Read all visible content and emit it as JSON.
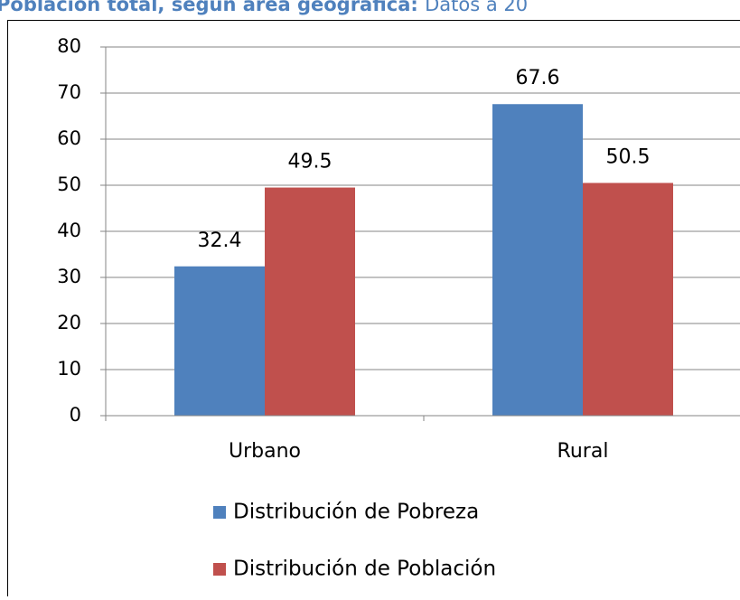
{
  "chart_data": {
    "type": "bar",
    "title": "Población total, según área geográfica:",
    "subtitle": "Datos a 20",
    "categories": [
      "Urbano",
      "Rural"
    ],
    "series": [
      {
        "name": "Distribución de Pobreza",
        "color": "#4f81bd",
        "values": [
          32.4,
          67.6
        ]
      },
      {
        "name": "Distribución de Población",
        "color": "#c0504d",
        "values": [
          49.5,
          50.5
        ]
      }
    ],
    "ylim": [
      0,
      80
    ],
    "yticks": [
      0,
      10,
      20,
      30,
      40,
      50,
      60,
      70,
      80
    ],
    "grid": true
  }
}
